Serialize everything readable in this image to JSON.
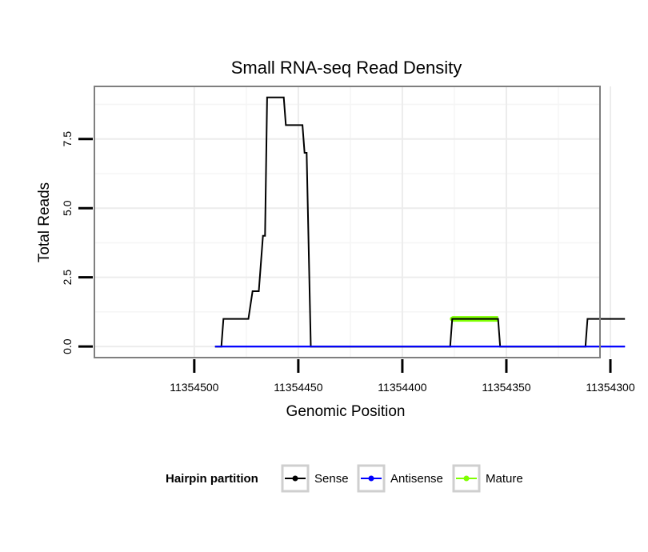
{
  "chart_data": {
    "type": "line",
    "title": "Small RNA-seq Read Density",
    "xlabel": "Genomic Position",
    "ylabel": "Total Reads",
    "x_reversed": true,
    "xlim": [
      11354548,
      11354305
    ],
    "ylim": [
      -0.4,
      9.4
    ],
    "x_ticks": [
      11354500,
      11354450,
      11354400,
      11354350,
      11354300
    ],
    "x_tick_labels": [
      "11354500",
      "11354450",
      "11354400",
      "11354350",
      "11354300"
    ],
    "y_ticks": [
      0,
      2.5,
      5,
      7.5
    ],
    "y_tick_labels": [
      "0.0",
      "2.5",
      "5.0",
      "7.5"
    ],
    "grid": true,
    "legend": {
      "title": "Hairpin partition",
      "position": "bottom",
      "entries": [
        {
          "name": "Sense",
          "color": "#000000"
        },
        {
          "name": "Antisense",
          "color": "#0000ff"
        },
        {
          "name": "Mature",
          "color": "#7fff00"
        }
      ]
    },
    "series": [
      {
        "name": "Sense",
        "color": "#000000",
        "x": [
          11354490,
          11354487,
          11354486,
          11354474,
          11354472,
          11354469,
          11354467,
          11354466,
          11354465,
          11354464,
          11354457,
          11354456,
          11354448,
          11354447,
          11354446,
          11354444,
          11354377,
          11354376,
          11354354,
          11354353,
          11354312,
          11354311,
          11354293
        ],
        "y": [
          0,
          0,
          1,
          1,
          2,
          2,
          4,
          4,
          9,
          9,
          9,
          8,
          8,
          7,
          7,
          0,
          0,
          1,
          1,
          0,
          0,
          1,
          1
        ]
      },
      {
        "name": "Antisense",
        "color": "#0000ff",
        "x": [
          11354490,
          11354293
        ],
        "y": [
          0,
          0
        ]
      },
      {
        "name": "Mature",
        "color": "#7fff00",
        "x": [
          11354376,
          11354354
        ],
        "y": [
          1,
          1
        ]
      }
    ]
  }
}
